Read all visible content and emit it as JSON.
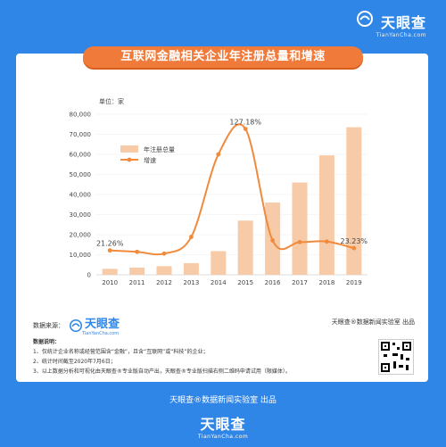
{
  "brand": {
    "name": "天眼查",
    "url": "TianYanCha.com"
  },
  "title": "互联网金融相关企业年注册总量和增速",
  "unit_label": "单位：家",
  "source_label": "数据来源：",
  "lab_credit": "天眼查®数据新闻实验室 出品",
  "notes": {
    "heading": "数据说明：",
    "items": [
      "1、仅统计企业名称或经营范围含“金融”，且含“互联网”或“科技”的企业；",
      "2、统计时间截至2020年7月6日；",
      "3、以上数据分析和可视化由天眼查®专业版自动产出，天眼查®专业版扫描右侧二维码申请试用（限媒体）。"
    ]
  },
  "footer_credit": "天眼查®数据新闻实验室 出品",
  "colors": {
    "bar": "#f8cba8",
    "line": "#f08a3c",
    "accent": "#f07a3a",
    "bg": "#2f86e6"
  },
  "chart_data": {
    "type": "bar",
    "categories": [
      "2010",
      "2011",
      "2012",
      "2013",
      "2014",
      "2015",
      "2016",
      "2017",
      "2018",
      "2019"
    ],
    "ylim": [
      0,
      80000
    ],
    "yticks": [
      "0",
      "10,000",
      "20,000",
      "30,000",
      "40,000",
      "50,000",
      "60,000",
      "70,000",
      "80,000"
    ],
    "legend_position": "top-left",
    "series": [
      {
        "name": "年注册总量",
        "type": "bar",
        "values": [
          3000,
          3600,
          4300,
          5800,
          11800,
          27000,
          36000,
          46000,
          59500,
          73500
        ]
      },
      {
        "name": "增速",
        "type": "line",
        "axis": "secondary",
        "values": [
          21.26,
          20.0,
          18.5,
          33.0,
          105.0,
          127.18,
          30.0,
          28.5,
          29.0,
          23.23
        ]
      }
    ],
    "annotations": [
      {
        "category": "2010",
        "text": "21.26%"
      },
      {
        "category": "2015",
        "text": "127.18%"
      },
      {
        "category": "2019",
        "text": "23.23%"
      }
    ]
  }
}
